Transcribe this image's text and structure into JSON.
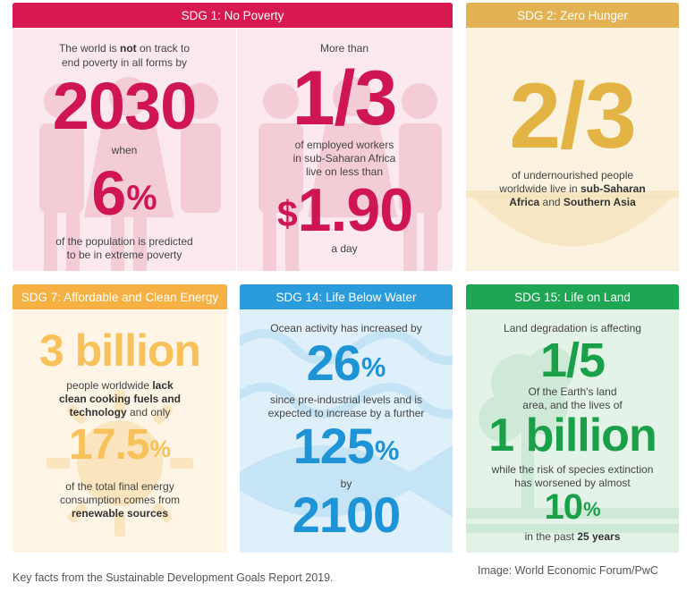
{
  "sdg1": {
    "header": "SDG 1: No Poverty",
    "left": {
      "line1": "The world is ",
      "line1_bold": "not",
      "line1_rest": " on track to",
      "line2": "end poverty in all forms by",
      "year": "2030",
      "when": "when",
      "pct": "6",
      "pct_sign": "%",
      "foot1": "of the population is predicted",
      "foot2": "to be in extreme poverty"
    },
    "right": {
      "line1": "More than",
      "fraction": "1/3",
      "mid1": "of employed workers",
      "mid2": "in sub-Saharan Africa",
      "mid3": "live on less than",
      "dollar": "$",
      "amount": "1.90",
      "foot": "a day"
    }
  },
  "sdg2": {
    "header": "SDG 2: Zero Hunger",
    "fraction": "2/3",
    "line1": "of undernourished people",
    "line2a": "worldwide live in ",
    "line2b": "sub-Saharan",
    "line3a": "Africa",
    "line3b": " and ",
    "line3c": "Southern Asia"
  },
  "sdg7": {
    "header": "SDG 7: Affordable and Clean Energy",
    "big1": "3 billion",
    "line1a": "people worldwide ",
    "line1b": "lack",
    "line2": "clean cooking fuels and",
    "line3a": "technology",
    "line3b": " and only",
    "pct": "17.5",
    "pct_sign": "%",
    "foot1": "of the total final energy",
    "foot2": "consumption comes from",
    "foot3": "renewable sources"
  },
  "sdg14": {
    "header": "SDG 14: Life Below Water",
    "line1": "Ocean activity has increased by",
    "pct1": "26",
    "pct1_sign": "%",
    "mid1": "since pre-industrial levels and is",
    "mid2": "expected to increase by a further",
    "pct2": "125",
    "pct2_sign": "%",
    "by": "by",
    "year": "2100"
  },
  "sdg15": {
    "header": "SDG 15: Life on Land",
    "line1": "Land degradation is affecting",
    "fraction": "1/5",
    "mid1": "Of the Earth's land",
    "mid2": "area, and the lives of",
    "big": "1 billion",
    "mid3": "while the risk of species extinction",
    "mid4": "has worsened by almost",
    "pct": "10",
    "pct_sign": "%",
    "foot_a": "in the past ",
    "foot_b": "25 years"
  },
  "caption_left": "Key facts from the Sustainable Development Goals Report 2019.",
  "caption_right": "Image: World Economic Forum/PwC",
  "colors": {
    "sdg1": "#d8194f",
    "sdg2": "#e2b253",
    "sdg7": "#f6b144",
    "sdg14": "#2b9cdb",
    "sdg15": "#1fa653"
  }
}
